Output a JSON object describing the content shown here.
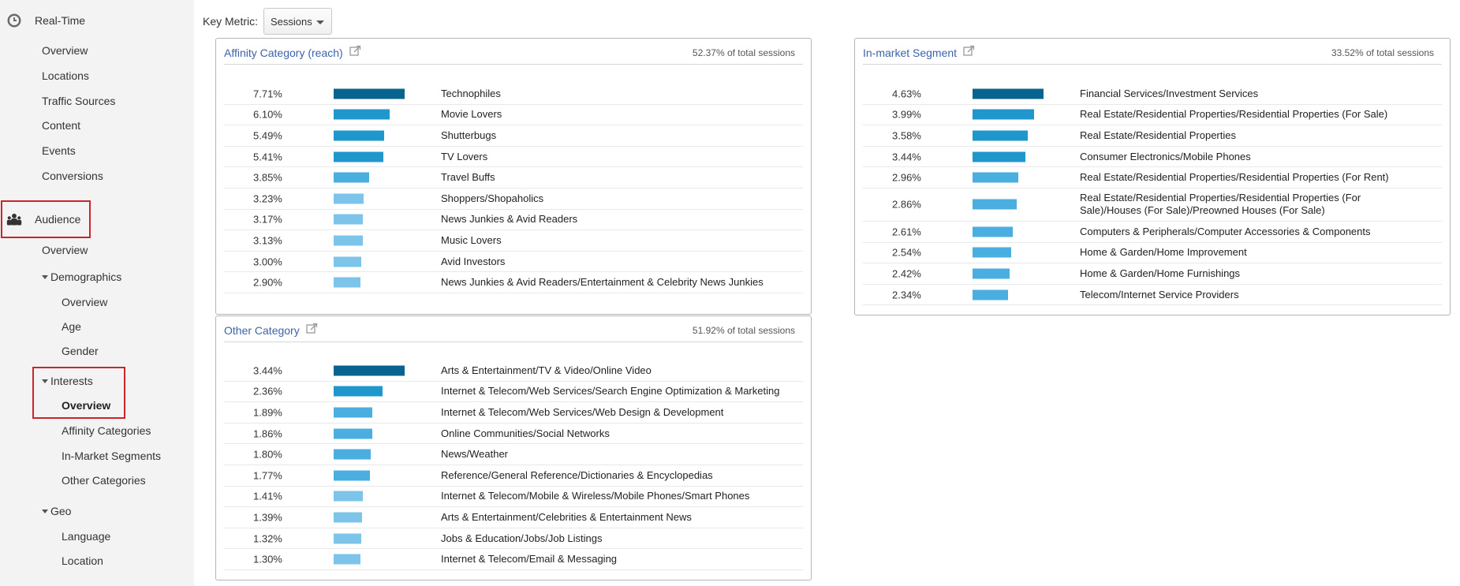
{
  "colors": {
    "bar_dark": "#08648f",
    "bar_mid": "#1f97cc",
    "bar_light": "#4aaee0",
    "bar_lighter": "#7cc4ea",
    "link": "#3c63a8",
    "highlight": "#c8252c"
  },
  "sidebar": {
    "realtime": {
      "label": "Real-Time",
      "icon": "clock-icon",
      "items": [
        "Overview",
        "Locations",
        "Traffic Sources",
        "Content",
        "Events",
        "Conversions"
      ]
    },
    "audience": {
      "label": "Audience",
      "icon": "people-icon",
      "overview": "Overview",
      "demographics": {
        "label": "Demographics",
        "items": [
          "Overview",
          "Age",
          "Gender"
        ]
      },
      "interests": {
        "label": "Interests",
        "items": [
          "Overview",
          "Affinity Categories",
          "In-Market Segments",
          "Other Categories"
        ],
        "active_index": 0
      },
      "geo": {
        "label": "Geo",
        "items": [
          "Language",
          "Location"
        ]
      }
    }
  },
  "key_metric": {
    "label": "Key Metric:",
    "value": "Sessions"
  },
  "panels": {
    "affinity": {
      "title": "Affinity Category (reach)",
      "pct_of_total": "52.37% of total sessions",
      "rows": [
        {
          "pct": "7.71%",
          "value": 7.71,
          "label": "Technophiles"
        },
        {
          "pct": "6.10%",
          "value": 6.1,
          "label": "Movie Lovers"
        },
        {
          "pct": "5.49%",
          "value": 5.49,
          "label": "Shutterbugs"
        },
        {
          "pct": "5.41%",
          "value": 5.41,
          "label": "TV Lovers"
        },
        {
          "pct": "3.85%",
          "value": 3.85,
          "label": "Travel Buffs"
        },
        {
          "pct": "3.23%",
          "value": 3.23,
          "label": "Shoppers/Shopaholics"
        },
        {
          "pct": "3.17%",
          "value": 3.17,
          "label": "News Junkies & Avid Readers"
        },
        {
          "pct": "3.13%",
          "value": 3.13,
          "label": "Music Lovers"
        },
        {
          "pct": "3.00%",
          "value": 3.0,
          "label": "Avid Investors"
        },
        {
          "pct": "2.90%",
          "value": 2.9,
          "label": "News Junkies & Avid Readers/Entertainment & Celebrity News Junkies"
        }
      ]
    },
    "other": {
      "title": "Other Category",
      "pct_of_total": "51.92% of total sessions",
      "rows": [
        {
          "pct": "3.44%",
          "value": 3.44,
          "label": "Arts & Entertainment/TV & Video/Online Video"
        },
        {
          "pct": "2.36%",
          "value": 2.36,
          "label": "Internet & Telecom/Web Services/Search Engine Optimization & Marketing"
        },
        {
          "pct": "1.89%",
          "value": 1.89,
          "label": "Internet & Telecom/Web Services/Web Design & Development"
        },
        {
          "pct": "1.86%",
          "value": 1.86,
          "label": "Online Communities/Social Networks"
        },
        {
          "pct": "1.80%",
          "value": 1.8,
          "label": "News/Weather"
        },
        {
          "pct": "1.77%",
          "value": 1.77,
          "label": "Reference/General Reference/Dictionaries & Encyclopedias"
        },
        {
          "pct": "1.41%",
          "value": 1.41,
          "label": "Internet & Telecom/Mobile & Wireless/Mobile Phones/Smart Phones"
        },
        {
          "pct": "1.39%",
          "value": 1.39,
          "label": "Arts & Entertainment/Celebrities & Entertainment News"
        },
        {
          "pct": "1.32%",
          "value": 1.32,
          "label": "Jobs & Education/Jobs/Job Listings"
        },
        {
          "pct": "1.30%",
          "value": 1.3,
          "label": "Internet & Telecom/Email & Messaging"
        }
      ]
    },
    "inmarket": {
      "title": "In-market Segment",
      "pct_of_total": "33.52% of total sessions",
      "rows": [
        {
          "pct": "4.63%",
          "value": 4.63,
          "label": "Financial Services/Investment Services"
        },
        {
          "pct": "3.99%",
          "value": 3.99,
          "label": "Real Estate/Residential Properties/Residential Properties (For Sale)"
        },
        {
          "pct": "3.58%",
          "value": 3.58,
          "label": "Real Estate/Residential Properties"
        },
        {
          "pct": "3.44%",
          "value": 3.44,
          "label": "Consumer Electronics/Mobile Phones"
        },
        {
          "pct": "2.96%",
          "value": 2.96,
          "label": "Real Estate/Residential Properties/Residential Properties (For Rent)"
        },
        {
          "pct": "2.86%",
          "value": 2.86,
          "label": "Real Estate/Residential Properties/Residential Properties (For Sale)/Houses (For Sale)/Preowned Houses (For Sale)"
        },
        {
          "pct": "2.61%",
          "value": 2.61,
          "label": "Computers & Peripherals/Computer Accessories & Components"
        },
        {
          "pct": "2.54%",
          "value": 2.54,
          "label": "Home & Garden/Home Improvement"
        },
        {
          "pct": "2.42%",
          "value": 2.42,
          "label": "Home & Garden/Home Furnishings"
        },
        {
          "pct": "2.34%",
          "value": 2.34,
          "label": "Telecom/Internet Service Providers"
        }
      ]
    }
  }
}
